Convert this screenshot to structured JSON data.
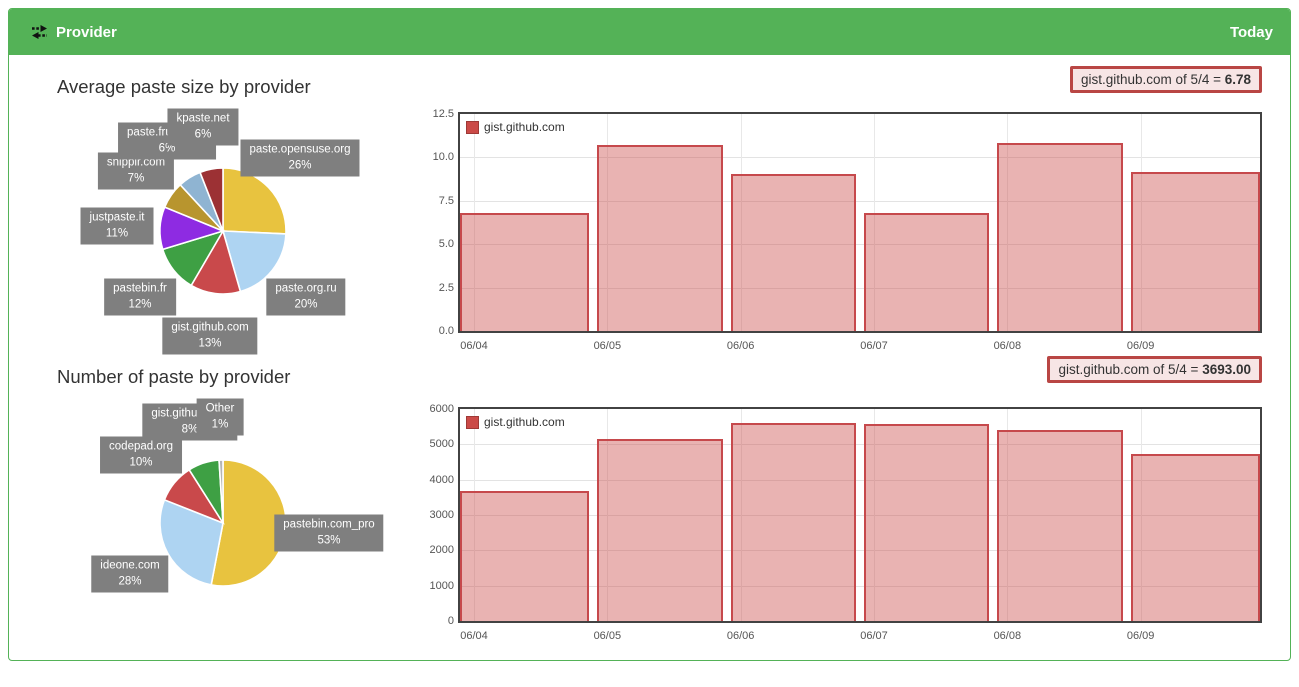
{
  "panel": {
    "title": "Provider",
    "period": "Today",
    "accent_green": "#54b257"
  },
  "sections": {
    "pie1_title": "Average paste size by provider",
    "pie2_title": "Number of paste by provider"
  },
  "badges": [
    {
      "prefix": "gist.github.com of 5/4 = ",
      "value": "6.78"
    },
    {
      "prefix": "gist.github.com of 5/4 = ",
      "value": "3693.00"
    }
  ],
  "chart_data": [
    {
      "type": "pie",
      "title": "Average paste size by provider",
      "slices": [
        {
          "label": "paste.opensuse.org",
          "pct": 26,
          "color": "#e8c33f"
        },
        {
          "label": "paste.org.ru",
          "pct": 20,
          "color": "#aed4f2"
        },
        {
          "label": "gist.github.com",
          "pct": 13,
          "color": "#c9494b"
        },
        {
          "label": "pastebin.fr",
          "pct": 12,
          "color": "#3ea044"
        },
        {
          "label": "justpaste.it",
          "pct": 11,
          "color": "#8e2be2"
        },
        {
          "label": "snipplr.com",
          "pct": 7,
          "color": "#b8952e"
        },
        {
          "label": "paste.frubar.net",
          "pct": 6,
          "color": "#8fb4d2"
        },
        {
          "label": "kpaste.net",
          "pct": 6,
          "color": "#9c3134"
        }
      ]
    },
    {
      "type": "pie",
      "title": "Number of paste by provider",
      "slices": [
        {
          "label": "pastebin.com_pro",
          "pct": 53,
          "color": "#e8c33f"
        },
        {
          "label": "ideone.com",
          "pct": 28,
          "color": "#aed4f2"
        },
        {
          "label": "codepad.org",
          "pct": 10,
          "color": "#c9494b"
        },
        {
          "label": "gist.github.com",
          "pct": 8,
          "color": "#3ea044"
        },
        {
          "label": "Other",
          "pct": 1,
          "color": "#b5b5b5"
        }
      ]
    },
    {
      "type": "bar",
      "series_label": "gist.github.com",
      "categories": [
        "06/04",
        "06/05",
        "06/06",
        "06/07",
        "06/08",
        "06/09"
      ],
      "values": [
        6.78,
        10.7,
        9.02,
        6.8,
        10.85,
        9.15
      ],
      "ylim": [
        0,
        12.5
      ],
      "yticks": [
        "0.0",
        "2.5",
        "5.0",
        "7.5",
        "10.0",
        "12.5"
      ],
      "bar_fill": "rgba(203,75,72,0.42)",
      "bar_border": "#c6494c",
      "legend_position": "top-left",
      "grid": true
    },
    {
      "type": "bar",
      "series_label": "gist.github.com",
      "categories": [
        "06/04",
        "06/05",
        "06/06",
        "06/07",
        "06/08",
        "06/09"
      ],
      "values": [
        3693,
        5140,
        5600,
        5570,
        5410,
        4730
      ],
      "ylim": [
        0,
        6000
      ],
      "yticks": [
        "0",
        "1000",
        "2000",
        "3000",
        "4000",
        "5000",
        "6000"
      ],
      "bar_fill": "rgba(203,75,72,0.42)",
      "bar_border": "#c6494c",
      "legend_position": "top-left",
      "grid": true
    }
  ]
}
